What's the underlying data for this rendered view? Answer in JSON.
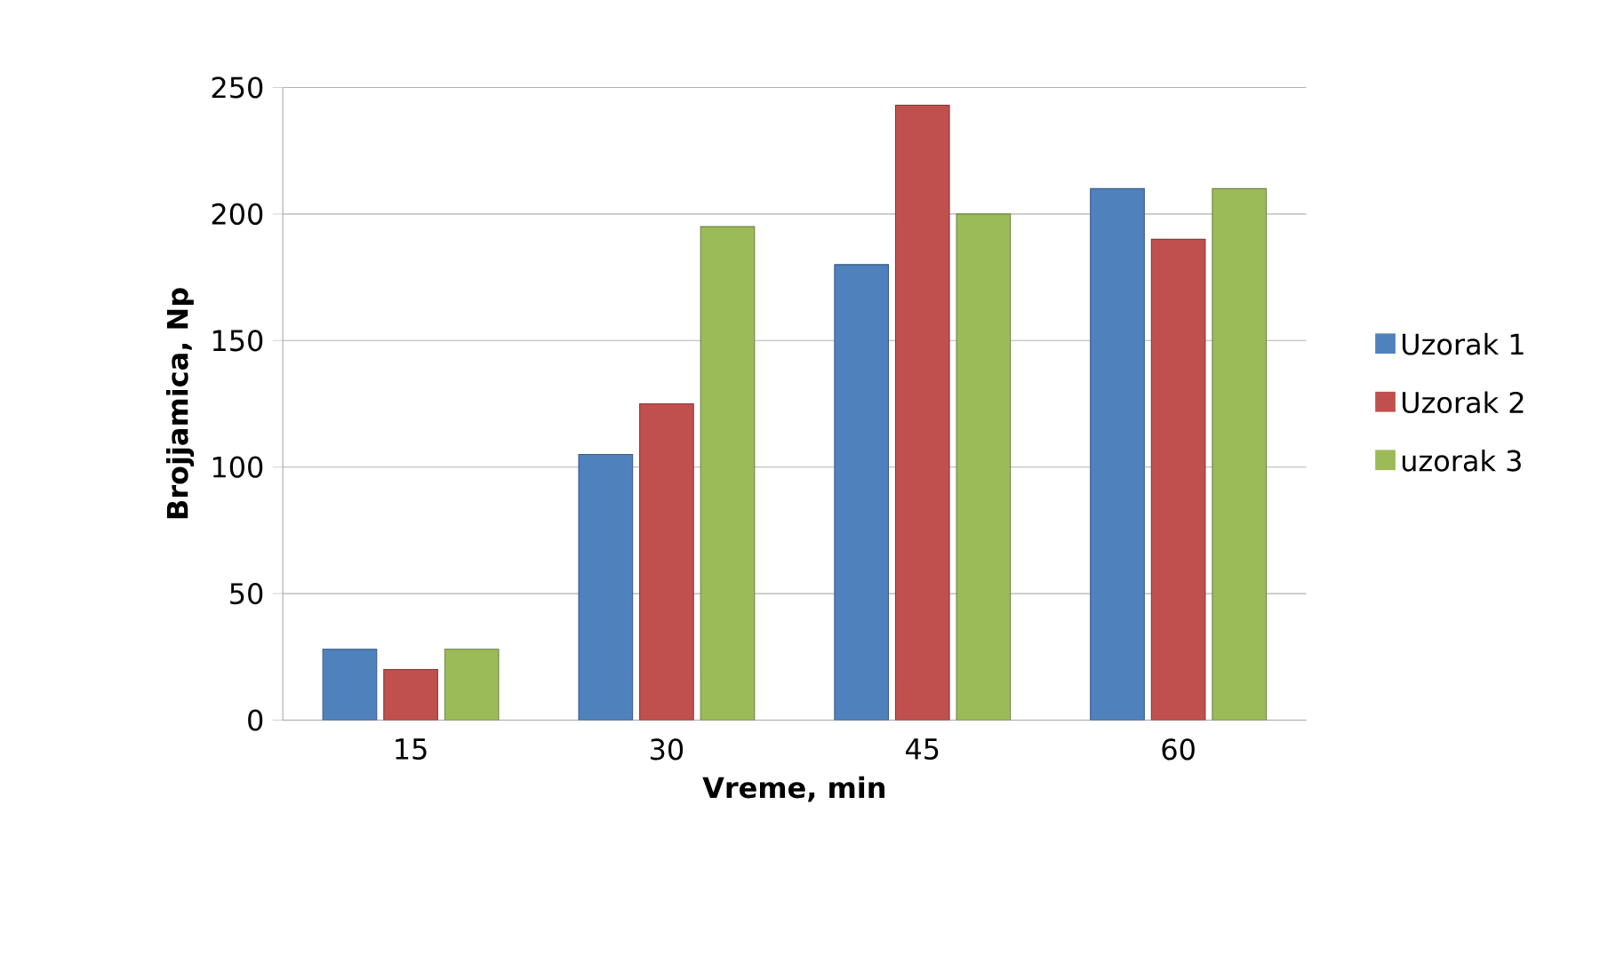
{
  "chart_data": {
    "type": "bar",
    "xlabel": "Vreme, min",
    "ylabel": "Brojjamica, Np",
    "categories": [
      "15",
      "30",
      "45",
      "60"
    ],
    "series": [
      {
        "name": "Uzorak 1",
        "color": "#4f81bd",
        "values": [
          28,
          105,
          180,
          210
        ]
      },
      {
        "name": "Uzorak 2",
        "color": "#c0504d",
        "values": [
          20,
          125,
          243,
          190
        ]
      },
      {
        "name": "uzorak 3",
        "color": "#9bbb59",
        "values": [
          28,
          195,
          200,
          210
        ]
      }
    ],
    "ylim": [
      0,
      250
    ],
    "yticks": [
      0,
      50,
      100,
      150,
      200,
      250
    ],
    "grid": "y",
    "legend": "right"
  }
}
